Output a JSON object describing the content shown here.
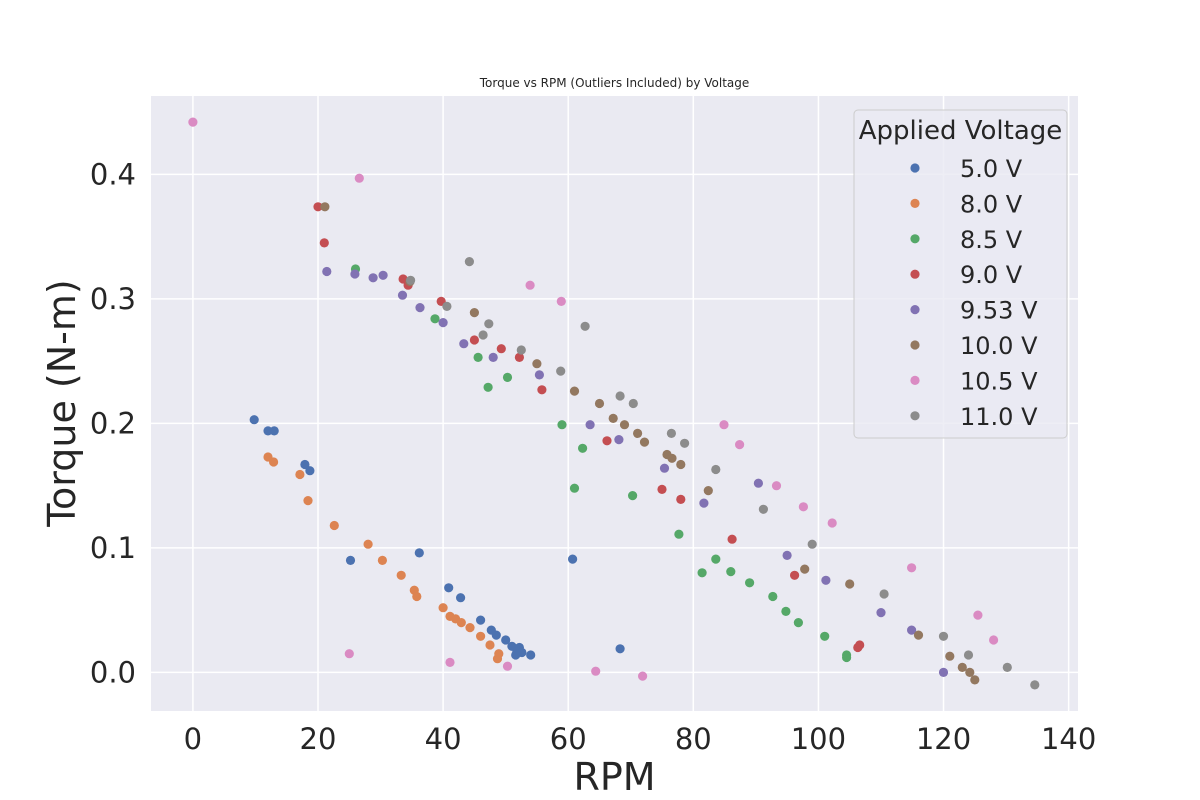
{
  "chart_data": {
    "type": "scatter",
    "title": "Torque vs RPM (Outliers Included) by Voltage",
    "xlabel": "RPM",
    "ylabel": "Torque (N-m)",
    "xlim": [
      -6.7,
      141.5
    ],
    "ylim": [
      -0.031,
      0.463
    ],
    "xticks": [
      0,
      20,
      40,
      60,
      80,
      100,
      120,
      140
    ],
    "yticks": [
      0.0,
      0.1,
      0.2,
      0.3,
      0.4
    ],
    "xtick_labels": [
      "0",
      "20",
      "40",
      "60",
      "80",
      "100",
      "120",
      "140"
    ],
    "ytick_labels": [
      "0.0",
      "0.1",
      "0.2",
      "0.3",
      "0.4"
    ],
    "grid": true,
    "legend": {
      "title": "Applied Voltage",
      "placement": "top-right"
    },
    "series": [
      {
        "name": "5.0 V",
        "color": "#4c72b0",
        "points": [
          [
            9.8,
            0.203
          ],
          [
            12.0,
            0.194
          ],
          [
            13.0,
            0.194
          ],
          [
            17.9,
            0.167
          ],
          [
            18.7,
            0.162
          ],
          [
            25.2,
            0.09
          ],
          [
            36.2,
            0.096
          ],
          [
            40.9,
            0.068
          ],
          [
            42.8,
            0.06
          ],
          [
            46.0,
            0.042
          ],
          [
            47.7,
            0.034
          ],
          [
            48.5,
            0.03
          ],
          [
            50.0,
            0.026
          ],
          [
            51.0,
            0.021
          ],
          [
            51.8,
            0.017
          ],
          [
            52.2,
            0.02
          ],
          [
            51.6,
            0.014
          ],
          [
            52.6,
            0.016
          ],
          [
            54.0,
            0.014
          ],
          [
            60.7,
            0.091
          ],
          [
            68.3,
            0.019
          ]
        ]
      },
      {
        "name": "8.0 V",
        "color": "#dd8452",
        "points": [
          [
            12.0,
            0.173
          ],
          [
            12.9,
            0.169
          ],
          [
            17.1,
            0.159
          ],
          [
            18.4,
            0.138
          ],
          [
            22.6,
            0.118
          ],
          [
            28.0,
            0.103
          ],
          [
            30.3,
            0.09
          ],
          [
            33.3,
            0.078
          ],
          [
            35.4,
            0.066
          ],
          [
            35.8,
            0.061
          ],
          [
            40.0,
            0.052
          ],
          [
            41.1,
            0.045
          ],
          [
            42.0,
            0.043
          ],
          [
            42.9,
            0.04
          ],
          [
            44.3,
            0.036
          ],
          [
            46.0,
            0.029
          ],
          [
            47.5,
            0.022
          ],
          [
            48.9,
            0.015
          ],
          [
            48.7,
            0.011
          ]
        ]
      },
      {
        "name": "8.5 V",
        "color": "#55a868",
        "points": [
          [
            26.0,
            0.324
          ],
          [
            38.7,
            0.284
          ],
          [
            45.6,
            0.253
          ],
          [
            47.2,
            0.229
          ],
          [
            50.3,
            0.237
          ],
          [
            59.0,
            0.199
          ],
          [
            62.3,
            0.18
          ],
          [
            61.0,
            0.148
          ],
          [
            70.3,
            0.142
          ],
          [
            77.7,
            0.111
          ],
          [
            81.4,
            0.08
          ],
          [
            83.6,
            0.091
          ],
          [
            86.0,
            0.081
          ],
          [
            89.0,
            0.072
          ],
          [
            92.7,
            0.061
          ],
          [
            94.8,
            0.049
          ],
          [
            96.8,
            0.04
          ],
          [
            101.0,
            0.029
          ],
          [
            104.5,
            0.014
          ],
          [
            104.5,
            0.012
          ]
        ]
      },
      {
        "name": "9.0 V",
        "color": "#c44e52",
        "points": [
          [
            20.0,
            0.374
          ],
          [
            21.0,
            0.345
          ],
          [
            33.6,
            0.316
          ],
          [
            34.4,
            0.311
          ],
          [
            39.7,
            0.298
          ],
          [
            45.0,
            0.267
          ],
          [
            49.3,
            0.26
          ],
          [
            52.2,
            0.253
          ],
          [
            55.8,
            0.227
          ],
          [
            66.2,
            0.186
          ],
          [
            75.0,
            0.147
          ],
          [
            78.0,
            0.139
          ],
          [
            86.2,
            0.107
          ],
          [
            96.2,
            0.078
          ],
          [
            106.3,
            0.02
          ],
          [
            106.6,
            0.022
          ]
        ]
      },
      {
        "name": "9.53 V",
        "color": "#8172b3",
        "points": [
          [
            21.4,
            0.322
          ],
          [
            25.9,
            0.32
          ],
          [
            28.8,
            0.317
          ],
          [
            30.4,
            0.319
          ],
          [
            33.5,
            0.303
          ],
          [
            36.3,
            0.293
          ],
          [
            40.0,
            0.281
          ],
          [
            43.3,
            0.264
          ],
          [
            48.0,
            0.253
          ],
          [
            55.4,
            0.239
          ],
          [
            63.5,
            0.199
          ],
          [
            68.1,
            0.187
          ],
          [
            75.4,
            0.164
          ],
          [
            81.7,
            0.136
          ],
          [
            90.4,
            0.152
          ],
          [
            95.0,
            0.094
          ],
          [
            101.2,
            0.074
          ],
          [
            110.0,
            0.048
          ],
          [
            114.9,
            0.034
          ],
          [
            120.0,
            0.0
          ]
        ]
      },
      {
        "name": "10.0 V",
        "color": "#937860",
        "points": [
          [
            21.1,
            0.374
          ],
          [
            34.7,
            0.314
          ],
          [
            45.0,
            0.289
          ],
          [
            55.0,
            0.248
          ],
          [
            61.0,
            0.226
          ],
          [
            65.0,
            0.216
          ],
          [
            67.2,
            0.204
          ],
          [
            69.0,
            0.199
          ],
          [
            71.1,
            0.192
          ],
          [
            72.2,
            0.185
          ],
          [
            75.8,
            0.175
          ],
          [
            76.6,
            0.172
          ],
          [
            78.0,
            0.167
          ],
          [
            82.4,
            0.146
          ],
          [
            97.8,
            0.083
          ],
          [
            105.0,
            0.071
          ],
          [
            116.0,
            0.03
          ],
          [
            121.0,
            0.013
          ],
          [
            123.0,
            0.004
          ],
          [
            124.2,
            0.0
          ],
          [
            125.0,
            -0.006
          ]
        ]
      },
      {
        "name": "10.5 V",
        "color": "#da8bc3",
        "points": [
          [
            0.0,
            0.442
          ],
          [
            26.6,
            0.397
          ],
          [
            25.0,
            0.015
          ],
          [
            41.1,
            0.008
          ],
          [
            50.3,
            0.005
          ],
          [
            53.9,
            0.311
          ],
          [
            58.9,
            0.298
          ],
          [
            64.4,
            0.001
          ],
          [
            71.9,
            -0.003
          ],
          [
            84.9,
            0.199
          ],
          [
            87.4,
            0.183
          ],
          [
            93.3,
            0.15
          ],
          [
            97.6,
            0.133
          ],
          [
            102.2,
            0.12
          ],
          [
            114.9,
            0.084
          ],
          [
            125.5,
            0.046
          ],
          [
            128.0,
            0.026
          ]
        ]
      },
      {
        "name": "11.0 V",
        "color": "#8c8c8c",
        "points": [
          [
            34.8,
            0.315
          ],
          [
            40.6,
            0.294
          ],
          [
            44.2,
            0.33
          ],
          [
            46.4,
            0.271
          ],
          [
            47.3,
            0.28
          ],
          [
            52.5,
            0.259
          ],
          [
            58.8,
            0.242
          ],
          [
            62.7,
            0.278
          ],
          [
            68.3,
            0.222
          ],
          [
            70.4,
            0.216
          ],
          [
            76.5,
            0.192
          ],
          [
            78.6,
            0.184
          ],
          [
            83.6,
            0.163
          ],
          [
            91.2,
            0.131
          ],
          [
            99.0,
            0.103
          ],
          [
            110.5,
            0.063
          ],
          [
            120.0,
            0.029
          ],
          [
            124.0,
            0.014
          ],
          [
            130.2,
            0.004
          ],
          [
            134.6,
            -0.01
          ]
        ]
      }
    ]
  }
}
